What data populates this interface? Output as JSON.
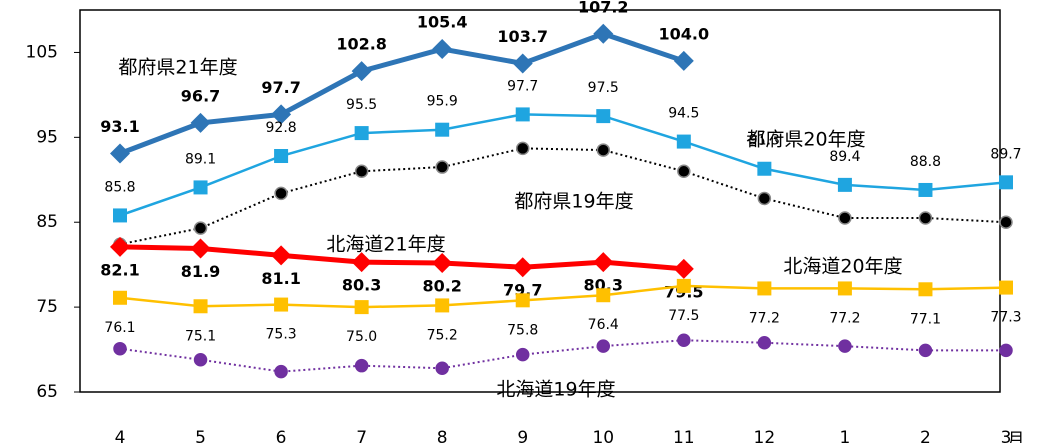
{
  "chart_data": {
    "type": "line",
    "categories": [
      "4",
      "5",
      "6",
      "7",
      "8",
      "9",
      "10",
      "11",
      "12",
      "1",
      "2",
      "3"
    ],
    "x_unit": "月",
    "ylim": [
      65,
      110
    ],
    "yticks": [
      65,
      75,
      85,
      95,
      105
    ],
    "series": [
      {
        "name": "都府県21年度",
        "color": "#2e75b6",
        "marker": "diamond",
        "dash": false,
        "bold": true,
        "values": [
          93.1,
          96.7,
          97.7,
          102.8,
          105.4,
          103.7,
          107.2,
          104.0,
          null,
          null,
          null,
          null
        ],
        "value_labels": [
          "93.1",
          "96.7",
          "97.7",
          "102.8",
          "105.4",
          "103.7",
          "107.2",
          "104.0",
          null,
          null,
          null,
          null
        ]
      },
      {
        "name": "都府県20年度",
        "color": "#1fa5e0",
        "marker": "square",
        "dash": false,
        "bold": false,
        "values": [
          85.8,
          89.1,
          92.8,
          95.5,
          95.9,
          97.7,
          97.5,
          94.5,
          91.3,
          89.4,
          88.8,
          89.7
        ],
        "value_labels": [
          "85.8",
          "89.1",
          "92.8",
          "95.5",
          "95.9",
          "97.7",
          "97.5",
          "94.5",
          "91.3",
          "89.4",
          "88.8",
          "89.7"
        ]
      },
      {
        "name": "都府県19年度",
        "color": "#000000",
        "marker": "circle",
        "dash": true,
        "bold": false,
        "values": [
          82.4,
          84.3,
          88.4,
          91.0,
          91.5,
          93.7,
          93.5,
          91.0,
          87.8,
          85.5,
          85.5,
          85.0
        ]
      },
      {
        "name": "北海道21年度",
        "color": "#ff0000",
        "marker": "diamond",
        "dash": false,
        "bold": true,
        "values": [
          82.1,
          81.9,
          81.1,
          80.3,
          80.2,
          79.7,
          80.3,
          79.5,
          null,
          null,
          null,
          null
        ],
        "value_labels": [
          "82.1",
          "81.9",
          "81.1",
          "80.3",
          "80.2",
          "79.7",
          "80.3",
          "79.5",
          null,
          null,
          null,
          null
        ]
      },
      {
        "name": "北海道20年度",
        "color": "#ffc000",
        "marker": "square",
        "dash": false,
        "bold": false,
        "values": [
          76.1,
          75.1,
          75.3,
          75.0,
          75.2,
          75.8,
          76.4,
          77.5,
          77.2,
          77.2,
          77.1,
          77.3
        ],
        "value_labels": [
          "76.1",
          "75.1",
          "75.3",
          "75.0",
          "75.2",
          "75.8",
          "76.4",
          "77.5",
          "77.2",
          "77.2",
          "77.1",
          "77.3"
        ]
      },
      {
        "name": "北海道19年度",
        "color": "#7030a0",
        "marker": "circle",
        "dash": true,
        "bold": false,
        "values": [
          70.1,
          68.8,
          67.4,
          68.1,
          67.8,
          69.4,
          70.4,
          71.1,
          70.8,
          70.4,
          69.9,
          69.9
        ]
      }
    ]
  }
}
